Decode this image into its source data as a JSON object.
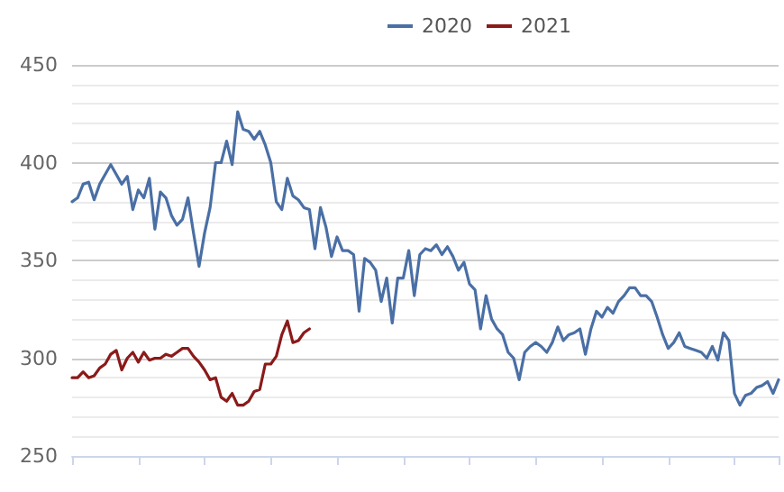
{
  "chart_data": {
    "type": "line",
    "categories": [
      null,
      null,
      null,
      null,
      null,
      null,
      null,
      null,
      null,
      null,
      null,
      null,
      null,
      null,
      null,
      null,
      null,
      null,
      null,
      null,
      null,
      null,
      null,
      null,
      null,
      null,
      null,
      null,
      null,
      null,
      null,
      null,
      null,
      null,
      null,
      null,
      null,
      null,
      null,
      null,
      null,
      null,
      null,
      null,
      null,
      null,
      null,
      null,
      null,
      null,
      null,
      null,
      null,
      null,
      null,
      null,
      null,
      null,
      null,
      null,
      null,
      null,
      null,
      null,
      null,
      null,
      null,
      null,
      null,
      null,
      null,
      null,
      null,
      null,
      null,
      null,
      null,
      null,
      null,
      null,
      null,
      null,
      null,
      null,
      null,
      null,
      null,
      null,
      null,
      null,
      null,
      null,
      null,
      null,
      null,
      null,
      null,
      null,
      null,
      null,
      null,
      null,
      null,
      null,
      null,
      null,
      null,
      null,
      null,
      null,
      null,
      null,
      null,
      null,
      null,
      null,
      null,
      null,
      null,
      null,
      null,
      null,
      null,
      null,
      null,
      null,
      null,
      null,
      null
    ],
    "series": [
      {
        "name": "2020",
        "color": "#4a6fa5",
        "values": [
          380,
          382,
          389,
          390,
          381,
          389,
          394,
          399,
          394,
          389,
          393,
          376,
          386,
          382,
          392,
          366,
          385,
          382,
          373,
          368,
          371,
          382,
          364,
          347,
          364,
          377,
          400,
          400,
          411,
          399,
          426,
          417,
          416,
          412,
          416,
          409,
          400,
          380,
          376,
          392,
          383,
          381,
          377,
          376,
          356,
          377,
          367,
          352,
          362,
          355,
          355,
          353,
          324,
          351,
          349,
          345,
          329,
          341,
          318,
          341,
          341,
          355,
          332,
          353,
          356,
          355,
          358,
          353,
          357,
          352,
          345,
          349,
          338,
          335,
          315,
          332,
          320,
          315,
          312,
          303,
          300,
          289,
          303,
          306,
          308,
          306,
          303,
          308,
          316,
          309,
          312,
          313,
          315,
          302,
          315,
          324,
          321,
          326,
          323,
          329,
          332,
          336,
          336,
          332,
          332,
          329,
          321,
          312,
          305,
          308,
          313,
          306,
          305,
          304,
          303,
          300,
          306,
          299,
          313,
          309,
          282,
          276,
          281,
          282,
          285,
          286,
          288,
          282,
          289
        ]
      },
      {
        "name": "2021",
        "color": "#8b1a1a",
        "values": [
          290,
          290,
          293,
          290,
          291,
          295,
          297,
          302,
          304,
          294,
          300,
          303,
          298,
          303,
          299,
          300,
          300,
          302,
          301,
          303,
          305,
          305,
          301,
          298,
          294,
          289,
          290,
          280,
          278,
          282,
          276,
          276,
          278,
          283,
          284,
          297,
          297,
          301,
          312,
          319,
          308,
          309,
          313,
          315,
          null,
          null,
          null,
          null,
          null,
          null,
          null,
          null,
          null,
          null,
          null,
          null,
          null,
          null,
          null,
          null,
          null,
          null,
          null,
          null,
          null,
          null,
          null,
          null,
          null,
          null,
          null,
          null,
          null,
          null,
          null,
          null,
          null,
          null,
          null,
          null,
          null,
          null,
          null,
          null,
          null,
          null,
          null,
          null,
          null,
          null,
          null,
          null,
          null,
          null,
          null,
          null,
          null,
          null,
          null,
          null,
          null,
          null,
          null,
          null,
          null,
          null,
          null,
          null,
          null,
          null,
          null,
          null,
          null,
          null,
          null,
          null,
          null,
          null,
          null,
          null,
          null,
          null,
          null,
          null,
          null,
          null,
          null,
          null,
          null
        ]
      }
    ],
    "ylim": [
      250,
      450
    ],
    "yticks": [
      250,
      300,
      350,
      400,
      450
    ],
    "grid": "y",
    "legend": "top",
    "marker": "none",
    "line_style": "solid"
  }
}
